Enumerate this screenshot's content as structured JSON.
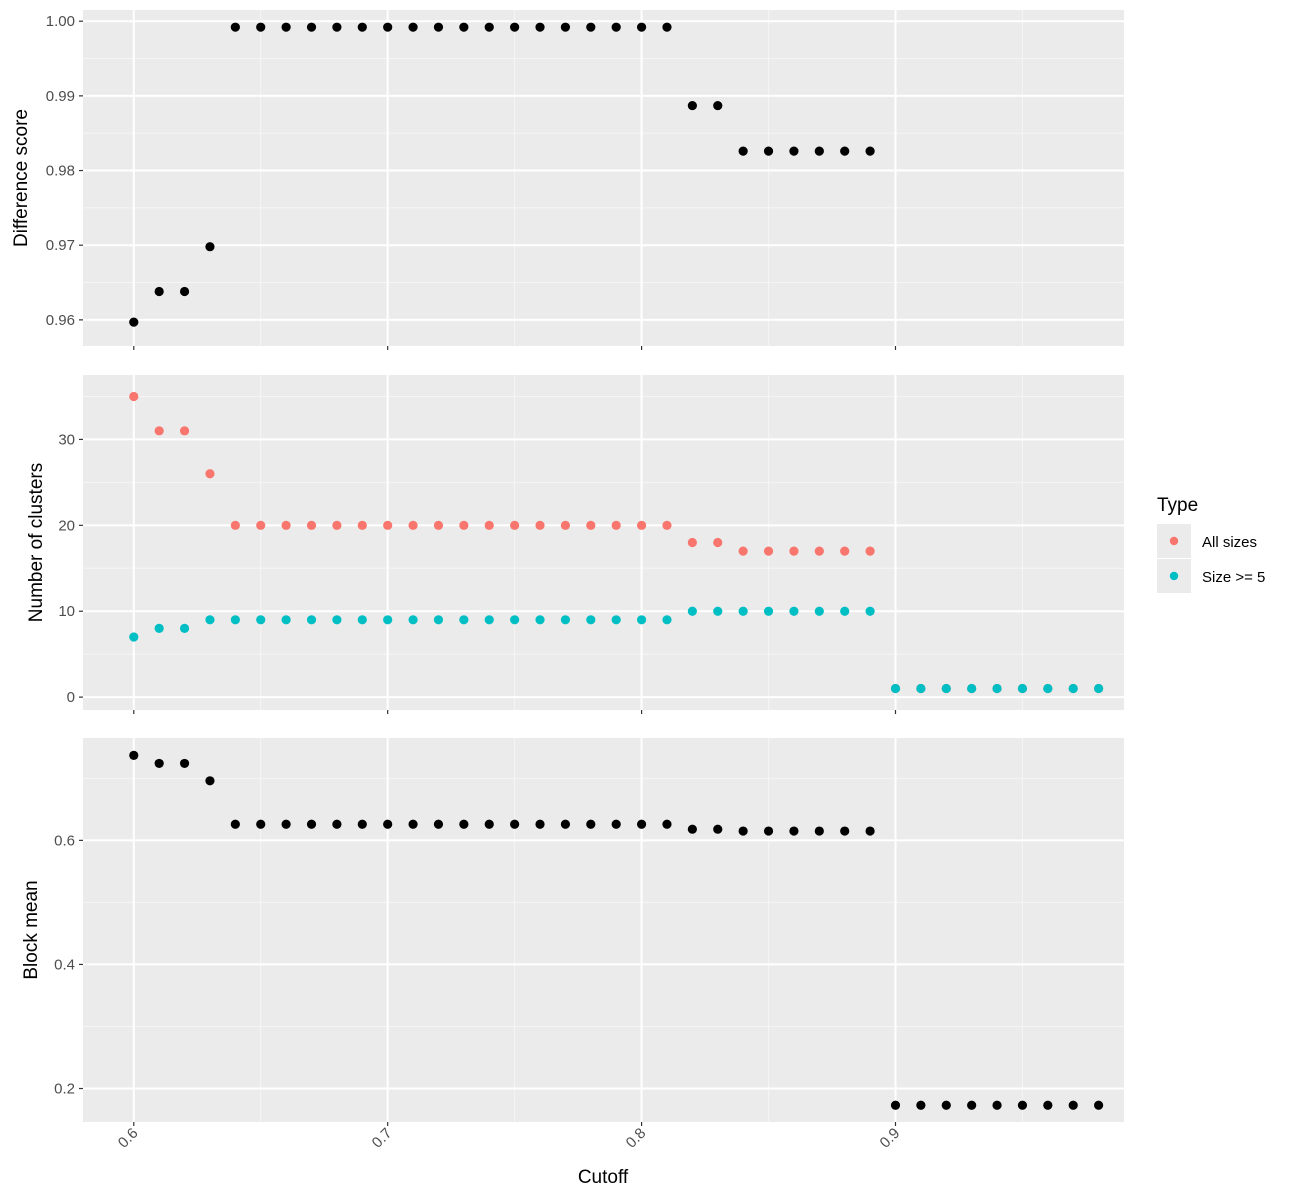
{
  "chart_data": {
    "type": "scatter",
    "x_label": "Cutoff",
    "x_range": [
      0.58,
      0.99
    ],
    "x_ticks": [
      0.6,
      0.7,
      0.8,
      0.9
    ],
    "x_tick_labels": [
      "0.6",
      "0.7",
      "0.8",
      "0.9"
    ],
    "grid": true,
    "legend_position": "right",
    "legend": {
      "title": "Type",
      "items": [
        {
          "label": "All sizes",
          "color": "#F8766D"
        },
        {
          "label": "Size >= 5",
          "color": "#00BFC4"
        }
      ]
    },
    "panels": [
      {
        "y_label": "Difference score",
        "y_range": [
          0.9565,
          1.0015
        ],
        "y_ticks": [
          0.96,
          0.97,
          0.98,
          0.99,
          1.0
        ],
        "y_tick_labels": [
          "0.96",
          "0.97",
          "0.98",
          "0.99",
          "1.00"
        ],
        "series": [
          {
            "color": "#000000",
            "x": [
              0.6,
              0.61,
              0.62,
              0.63,
              0.64,
              0.65,
              0.66,
              0.67,
              0.68,
              0.69,
              0.7,
              0.71,
              0.72,
              0.73,
              0.74,
              0.75,
              0.76,
              0.77,
              0.78,
              0.79,
              0.8,
              0.81,
              0.82,
              0.83,
              0.84,
              0.85,
              0.86,
              0.87,
              0.88,
              0.89
            ],
            "y": [
              0.9597,
              0.9638,
              0.9638,
              0.9698,
              0.9992,
              0.9992,
              0.9992,
              0.9992,
              0.9992,
              0.9992,
              0.9992,
              0.9992,
              0.9992,
              0.9992,
              0.9992,
              0.9992,
              0.9992,
              0.9992,
              0.9992,
              0.9992,
              0.9992,
              0.9992,
              0.9887,
              0.9887,
              0.9826,
              0.9826,
              0.9826,
              0.9826,
              0.9826,
              0.9826
            ]
          }
        ]
      },
      {
        "y_label": "Number of clusters",
        "y_range": [
          -1.5,
          37.5
        ],
        "y_ticks": [
          0,
          10,
          20,
          30
        ],
        "y_tick_labels": [
          "0",
          "10",
          "20",
          "30"
        ],
        "series": [
          {
            "name": "All sizes",
            "color": "#F8766D",
            "x": [
              0.6,
              0.61,
              0.62,
              0.63,
              0.64,
              0.65,
              0.66,
              0.67,
              0.68,
              0.69,
              0.7,
              0.71,
              0.72,
              0.73,
              0.74,
              0.75,
              0.76,
              0.77,
              0.78,
              0.79,
              0.8,
              0.81,
              0.82,
              0.83,
              0.84,
              0.85,
              0.86,
              0.87,
              0.88,
              0.89,
              0.9,
              0.91,
              0.92,
              0.93,
              0.94,
              0.95,
              0.96,
              0.97,
              0.98
            ],
            "y": [
              35,
              31,
              31,
              26,
              20,
              20,
              20,
              20,
              20,
              20,
              20,
              20,
              20,
              20,
              20,
              20,
              20,
              20,
              20,
              20,
              20,
              20,
              18,
              18,
              17,
              17,
              17,
              17,
              17,
              17,
              1,
              1,
              1,
              1,
              1,
              1,
              1,
              1,
              1
            ]
          },
          {
            "name": "Size >= 5",
            "color": "#00BFC4",
            "x": [
              0.6,
              0.61,
              0.62,
              0.63,
              0.64,
              0.65,
              0.66,
              0.67,
              0.68,
              0.69,
              0.7,
              0.71,
              0.72,
              0.73,
              0.74,
              0.75,
              0.76,
              0.77,
              0.78,
              0.79,
              0.8,
              0.81,
              0.82,
              0.83,
              0.84,
              0.85,
              0.86,
              0.87,
              0.88,
              0.89,
              0.9,
              0.91,
              0.92,
              0.93,
              0.94,
              0.95,
              0.96,
              0.97,
              0.98
            ],
            "y": [
              7,
              8,
              8,
              9,
              9,
              9,
              9,
              9,
              9,
              9,
              9,
              9,
              9,
              9,
              9,
              9,
              9,
              9,
              9,
              9,
              9,
              9,
              10,
              10,
              10,
              10,
              10,
              10,
              10,
              10,
              1,
              1,
              1,
              1,
              1,
              1,
              1,
              1,
              1
            ]
          }
        ]
      },
      {
        "y_label": "Block mean",
        "y_range": [
          0.146,
          0.765
        ],
        "y_ticks": [
          0.2,
          0.4,
          0.6
        ],
        "y_tick_labels": [
          "0.2",
          "0.4",
          "0.6"
        ],
        "series": [
          {
            "color": "#000000",
            "x": [
              0.6,
              0.61,
              0.62,
              0.63,
              0.64,
              0.65,
              0.66,
              0.67,
              0.68,
              0.69,
              0.7,
              0.71,
              0.72,
              0.73,
              0.74,
              0.75,
              0.76,
              0.77,
              0.78,
              0.79,
              0.8,
              0.81,
              0.82,
              0.83,
              0.84,
              0.85,
              0.86,
              0.87,
              0.88,
              0.89,
              0.9,
              0.91,
              0.92,
              0.93,
              0.94,
              0.95,
              0.96,
              0.97,
              0.98
            ],
            "y": [
              0.737,
              0.724,
              0.724,
              0.696,
              0.626,
              0.626,
              0.626,
              0.626,
              0.626,
              0.626,
              0.626,
              0.626,
              0.626,
              0.626,
              0.626,
              0.626,
              0.626,
              0.626,
              0.626,
              0.626,
              0.626,
              0.626,
              0.618,
              0.618,
              0.615,
              0.615,
              0.615,
              0.615,
              0.615,
              0.615,
              0.173,
              0.173,
              0.173,
              0.173,
              0.173,
              0.173,
              0.173,
              0.173,
              0.173
            ]
          }
        ]
      }
    ]
  }
}
